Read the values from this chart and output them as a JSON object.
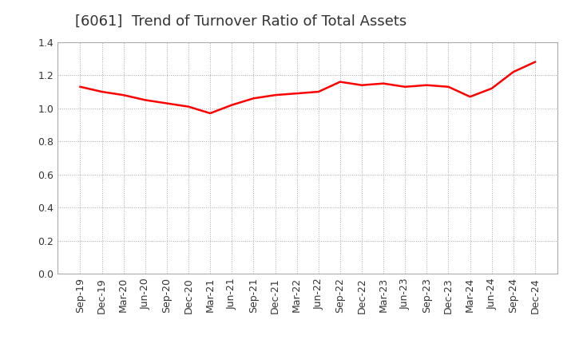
{
  "title": "[6061]  Trend of Turnover Ratio of Total Assets",
  "x_labels": [
    "Sep-19",
    "Dec-19",
    "Mar-20",
    "Jun-20",
    "Sep-20",
    "Dec-20",
    "Mar-21",
    "Jun-21",
    "Sep-21",
    "Dec-21",
    "Mar-22",
    "Jun-22",
    "Sep-22",
    "Dec-22",
    "Mar-23",
    "Jun-23",
    "Sep-23",
    "Dec-23",
    "Mar-24",
    "Jun-24",
    "Sep-24",
    "Dec-24"
  ],
  "y_values": [
    1.13,
    1.1,
    1.08,
    1.05,
    1.03,
    1.01,
    0.97,
    1.02,
    1.06,
    1.08,
    1.09,
    1.1,
    1.16,
    1.14,
    1.15,
    1.13,
    1.14,
    1.13,
    1.07,
    1.12,
    1.22,
    1.28
  ],
  "ylim": [
    0.0,
    1.4
  ],
  "yticks": [
    0.0,
    0.2,
    0.4,
    0.6,
    0.8,
    1.0,
    1.2,
    1.4
  ],
  "line_color": "#ff0000",
  "background_color": "#ffffff",
  "grid_color": "#aaaaaa",
  "title_fontsize": 13,
  "tick_fontsize": 9,
  "title_color": "#333333"
}
